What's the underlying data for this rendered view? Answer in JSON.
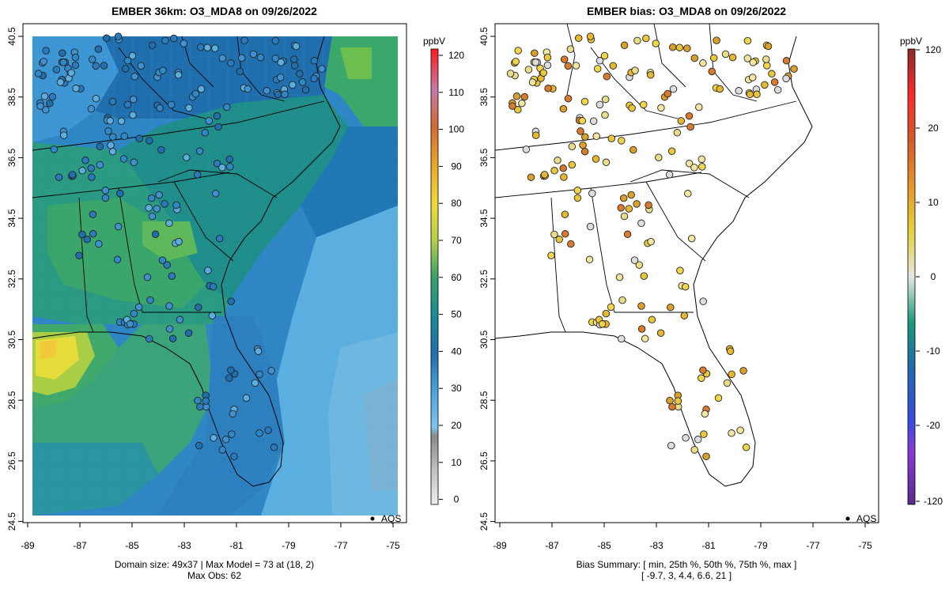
{
  "left_panel": {
    "title": "EMBER 36km: O3_MDA8 on 09/26/2022",
    "x_ticks": [
      "-89",
      "-87",
      "-85",
      "-83",
      "-81",
      "-79",
      "-77",
      "-75"
    ],
    "y_ticks": [
      "40.5",
      "38.5",
      "36.5",
      "34.5",
      "32.5",
      "30.5",
      "28.5",
      "26.5",
      "24.5"
    ],
    "footer_line1": "Domain size: 49x37 | Max Model = 73 at (18, 2)",
    "footer_line2": "Max Obs: 62",
    "legend_label": "AQS",
    "colorbar": {
      "unit": "ppbV",
      "ticks": [
        "120",
        "110",
        "100",
        "90",
        "80",
        "70",
        "60",
        "50",
        "40",
        "30",
        "20",
        "10",
        "0"
      ]
    }
  },
  "right_panel": {
    "title": "EMBER bias: O3_MDA8 on 09/26/2022",
    "x_ticks": [
      "-89",
      "-87",
      "-85",
      "-83",
      "-81",
      "-79",
      "-77",
      "-75"
    ],
    "y_ticks": [
      "40.5",
      "38.5",
      "36.5",
      "34.5",
      "32.5",
      "30.5",
      "28.5",
      "26.5",
      "24.5"
    ],
    "footer_line1": "Bias Summary: [ min, 25th %, 50th %, 75th %, max ]",
    "footer_line2": "[ -9.7,   3,   4.4,   6.6,   21 ]",
    "legend_label": "AQS",
    "colorbar": {
      "unit": "ppbV",
      "ticks": [
        "120",
        "20",
        "10",
        "0",
        "-10",
        "-20",
        "-120"
      ]
    }
  },
  "colors": {
    "model_low": "#5aaee0",
    "model_mid": "#1f78b4",
    "model_teal": "#1a9a85",
    "model_green": "#4daf5a",
    "model_yellow": "#e8dc3c",
    "bias_pos": "#e6b830",
    "bias_high": "#d9762c"
  }
}
